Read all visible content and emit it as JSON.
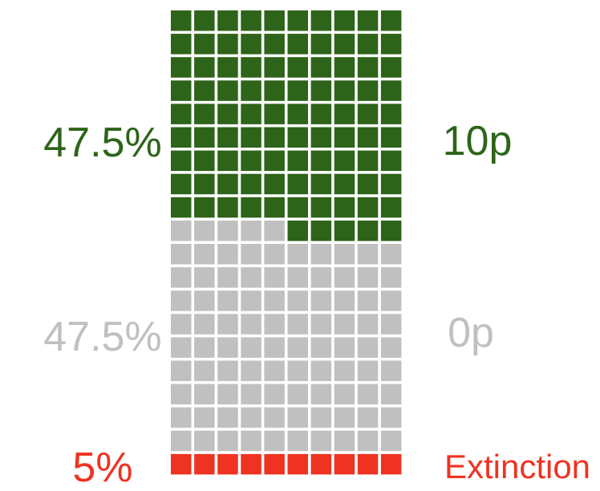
{
  "colors": {
    "outcome_good": "#2d6419",
    "outcome_neutral": "#c0c0c0",
    "outcome_extinction": "#ee3322"
  },
  "chart_data": {
    "type": "waffle",
    "columns": 10,
    "total_cells": 200,
    "series": [
      {
        "percent_label": "47.5%",
        "outcome_label": "10p",
        "cells": 95,
        "color": "#2d6419"
      },
      {
        "percent_label": "47.5%",
        "outcome_label": "0p",
        "cells": 95,
        "color": "#c0c0c0"
      },
      {
        "percent_label": "5%",
        "outcome_label": "Extinction",
        "cells": 10,
        "color": "#ee3322"
      }
    ]
  }
}
